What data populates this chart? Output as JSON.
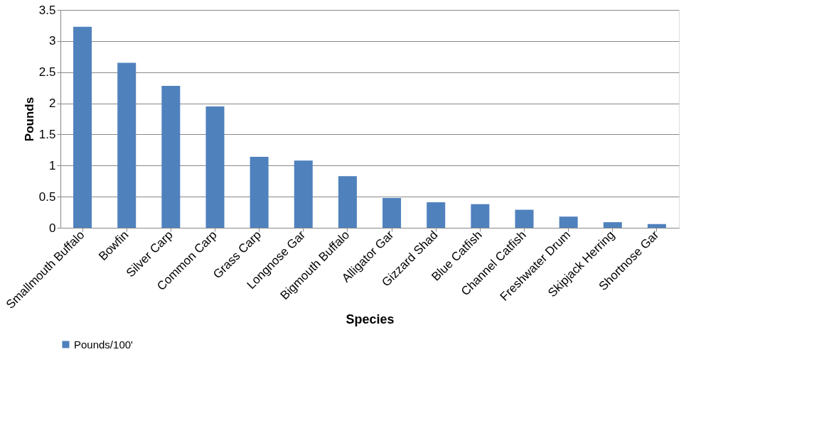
{
  "chart_data": {
    "type": "bar",
    "xlabel": "Species",
    "ylabel": "Pounds",
    "categories": [
      "Smallmouth Buffalo",
      "Bowfin",
      "Silver Carp",
      "Common Carp",
      "Grass Carp",
      "Longnose Gar",
      "Bigmouth Buffalo",
      "Alligator Gar",
      "Gizzard Shad",
      "Blue Catfish",
      "Channel Catfish",
      "Freshwater Drum",
      "Skipjack Herring",
      "Shortnose Gar"
    ],
    "series": [
      {
        "name": "Pounds/100'",
        "color": "#4f81bd",
        "values": [
          3.23,
          2.65,
          2.28,
          1.95,
          1.14,
          1.08,
          0.83,
          0.48,
          0.41,
          0.38,
          0.29,
          0.18,
          0.09,
          0.06
        ]
      }
    ],
    "ylim": [
      0,
      3.5
    ],
    "yticks": [
      0,
      0.5,
      1,
      1.5,
      2,
      2.5,
      3,
      3.5
    ],
    "grid": "y",
    "legend": "bottom"
  }
}
